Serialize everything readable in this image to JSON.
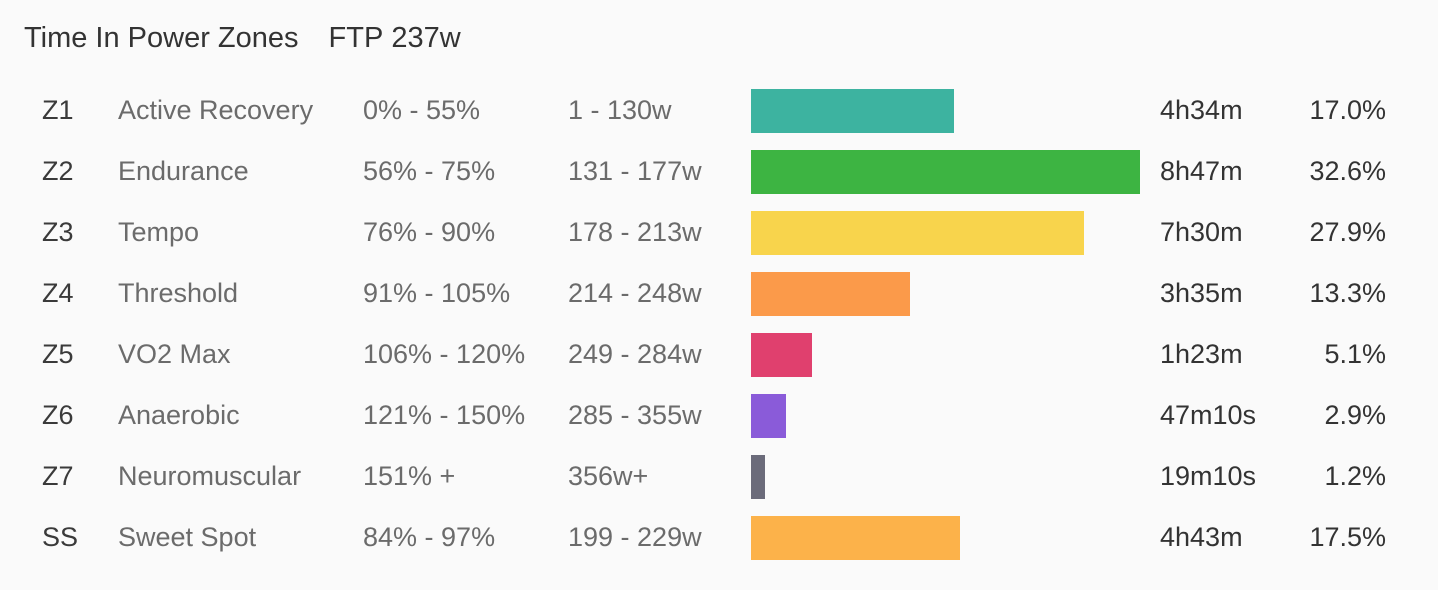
{
  "header": {
    "title": "Time In Power Zones",
    "ftp_label": "FTP",
    "ftp_value": "237w"
  },
  "chart_data": {
    "type": "bar",
    "orientation": "horizontal",
    "grid": false,
    "rows": [
      {
        "code": "Z1",
        "name": "Active Recovery",
        "pct_range": "0% - 55%",
        "watt_range": "1 - 130w",
        "time": "4h34m",
        "share_label": "17.0%",
        "value": 17.0,
        "color": "#3db3a0"
      },
      {
        "code": "Z2",
        "name": "Endurance",
        "pct_range": "56% - 75%",
        "watt_range": "131 - 177w",
        "time": "8h47m",
        "share_label": "32.6%",
        "value": 32.6,
        "color": "#3db442"
      },
      {
        "code": "Z3",
        "name": "Tempo",
        "pct_range": "76% - 90%",
        "watt_range": "178 - 213w",
        "time": "7h30m",
        "share_label": "27.9%",
        "value": 27.9,
        "color": "#f8d44c"
      },
      {
        "code": "Z4",
        "name": "Threshold",
        "pct_range": "91% - 105%",
        "watt_range": "214 - 248w",
        "time": "3h35m",
        "share_label": "13.3%",
        "value": 13.3,
        "color": "#fb9a4a"
      },
      {
        "code": "Z5",
        "name": "VO2 Max",
        "pct_range": "106% - 120%",
        "watt_range": "249 - 284w",
        "time": "1h23m",
        "share_label": "5.1%",
        "value": 5.1,
        "color": "#e0406e"
      },
      {
        "code": "Z6",
        "name": "Anaerobic",
        "pct_range": "121% - 150%",
        "watt_range": "285 - 355w",
        "time": "47m10s",
        "share_label": "2.9%",
        "value": 2.9,
        "color": "#8a5bd9"
      },
      {
        "code": "Z7",
        "name": "Neuromuscular",
        "pct_range": "151% +",
        "watt_range": "356w+",
        "time": "19m10s",
        "share_label": "1.2%",
        "value": 1.2,
        "color": "#6b6b7a"
      },
      {
        "code": "SS",
        "name": "Sweet Spot",
        "pct_range": "84% - 97%",
        "watt_range": "199 - 229w",
        "time": "4h43m",
        "share_label": "17.5%",
        "value": 17.5,
        "color": "#fcb24a"
      }
    ]
  }
}
